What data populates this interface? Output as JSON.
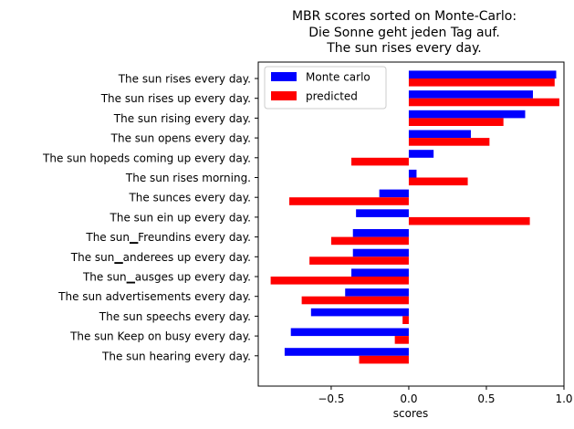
{
  "chart_data": {
    "type": "bar",
    "orientation": "horizontal",
    "title": [
      "MBR scores sorted on Monte-Carlo:",
      "Die Sonne geht jeden Tag auf.",
      "The sun rises every day."
    ],
    "xlabel": "scores",
    "ylabel": "",
    "xlim": [
      -0.97,
      1.0
    ],
    "xticks": [
      -0.5,
      0.0,
      0.5,
      1.0
    ],
    "xtick_labels": [
      "−0.5",
      "0.0",
      "0.5",
      "1.0"
    ],
    "legend_position": "top-left",
    "categories": [
      "The sun rises every day.",
      "The sun rises up every day.",
      "The sun rising every day.",
      "The sun opens every day.",
      "The sun hopeds coming up every day.",
      "The sun rises morning.",
      "The sunces every day.",
      "The sun ein up every day.",
      "The sun▁Freundins every day.",
      "The sun▁anderees up every day.",
      "The sun▁ausges up every day.",
      "The sun advertisements every day.",
      "The sun speechs every day.",
      "The sun Keep on busy every day.",
      "The sun hearing every day."
    ],
    "series": [
      {
        "name": "Monte carlo",
        "color": "#0000ff",
        "values": [
          0.95,
          0.8,
          0.75,
          0.4,
          0.16,
          0.05,
          -0.19,
          -0.34,
          -0.36,
          -0.36,
          -0.37,
          -0.41,
          -0.63,
          -0.76,
          -0.8
        ]
      },
      {
        "name": "predicted",
        "color": "#ff0000",
        "values": [
          0.94,
          0.97,
          0.61,
          0.52,
          -0.37,
          0.38,
          -0.77,
          0.78,
          -0.5,
          -0.64,
          -0.89,
          -0.69,
          -0.04,
          -0.09,
          -0.32
        ]
      }
    ]
  }
}
